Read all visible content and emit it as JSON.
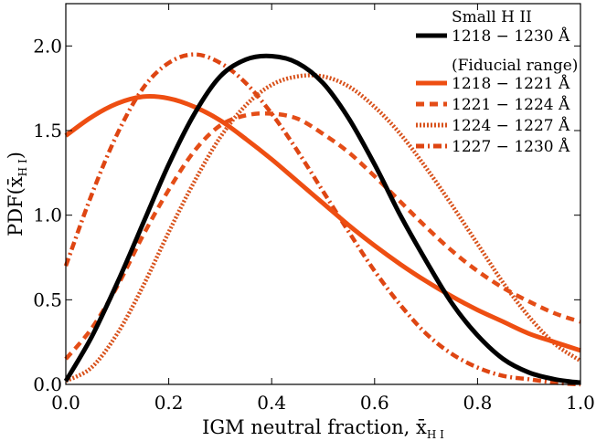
{
  "chart_data": {
    "type": "line",
    "xlabel": "IGM neutral fraction, x̄",
    "xlabel_sub": "H I",
    "ylabel": "PDF(x̄",
    "ylabel_sub": "H I",
    "ylabel_close": ")",
    "xlim": [
      0.0,
      1.0
    ],
    "ylim": [
      0.0,
      2.25
    ],
    "x_ticks": [
      0.0,
      0.2,
      0.4,
      0.6,
      0.8,
      1.0
    ],
    "x_tick_labels": [
      "0.0",
      "0.2",
      "0.4",
      "0.6",
      "0.8",
      "1.0"
    ],
    "y_ticks": [
      0.0,
      0.5,
      1.0,
      1.5,
      2.0
    ],
    "y_tick_labels": [
      "0.0",
      "0.5",
      "1.0",
      "1.5",
      "2.0"
    ],
    "grid": false,
    "legend_position": "top-right",
    "legend_title": "Small H II",
    "legend_note": "(Fiducial range)",
    "series": [
      {
        "name": "1218 − 1230 Å",
        "color": "#000000",
        "style": "solid",
        "x": [
          0.0,
          0.05,
          0.1,
          0.15,
          0.2,
          0.25,
          0.3,
          0.35,
          0.4,
          0.45,
          0.5,
          0.55,
          0.6,
          0.65,
          0.7,
          0.75,
          0.8,
          0.85,
          0.9,
          0.95,
          1.0
        ],
        "y": [
          0.02,
          0.28,
          0.6,
          0.95,
          1.3,
          1.6,
          1.82,
          1.92,
          1.94,
          1.9,
          1.78,
          1.57,
          1.3,
          1.0,
          0.73,
          0.48,
          0.29,
          0.15,
          0.07,
          0.03,
          0.01
        ]
      },
      {
        "name": "1218 − 1221 Å",
        "color": "#ee4e12",
        "style": "solid",
        "x": [
          0.0,
          0.05,
          0.1,
          0.15,
          0.2,
          0.25,
          0.3,
          0.35,
          0.4,
          0.45,
          0.5,
          0.55,
          0.6,
          0.65,
          0.7,
          0.75,
          0.8,
          0.85,
          0.9,
          0.95,
          1.0
        ],
        "y": [
          1.47,
          1.58,
          1.66,
          1.7,
          1.69,
          1.64,
          1.56,
          1.45,
          1.33,
          1.2,
          1.07,
          0.94,
          0.82,
          0.71,
          0.61,
          0.52,
          0.44,
          0.37,
          0.3,
          0.25,
          0.2
        ]
      },
      {
        "name": "1221 − 1224 Å",
        "color": "#e44d17",
        "style": "dashed",
        "x": [
          0.0,
          0.05,
          0.1,
          0.15,
          0.2,
          0.25,
          0.3,
          0.35,
          0.4,
          0.45,
          0.5,
          0.55,
          0.6,
          0.65,
          0.7,
          0.75,
          0.8,
          0.85,
          0.9,
          0.95,
          1.0
        ],
        "y": [
          0.15,
          0.33,
          0.58,
          0.88,
          1.15,
          1.38,
          1.53,
          1.59,
          1.6,
          1.57,
          1.48,
          1.37,
          1.23,
          1.08,
          0.93,
          0.79,
          0.67,
          0.57,
          0.49,
          0.42,
          0.37
        ]
      },
      {
        "name": "1224 − 1227 Å",
        "color": "#d8521c",
        "style": "dotted",
        "x": [
          0.0,
          0.05,
          0.1,
          0.15,
          0.2,
          0.25,
          0.3,
          0.35,
          0.4,
          0.45,
          0.5,
          0.55,
          0.6,
          0.65,
          0.7,
          0.75,
          0.8,
          0.85,
          0.9,
          0.95,
          1.0
        ],
        "y": [
          0.02,
          0.1,
          0.3,
          0.58,
          0.9,
          1.2,
          1.46,
          1.65,
          1.77,
          1.82,
          1.82,
          1.76,
          1.64,
          1.48,
          1.28,
          1.06,
          0.83,
          0.6,
          0.4,
          0.24,
          0.14
        ]
      },
      {
        "name": "1227 − 1230 Å",
        "color": "#de4512",
        "style": "dashdot",
        "x": [
          0.0,
          0.05,
          0.1,
          0.15,
          0.2,
          0.25,
          0.3,
          0.35,
          0.4,
          0.45,
          0.5,
          0.55,
          0.6,
          0.65,
          0.7,
          0.75,
          0.8,
          0.85,
          0.9,
          0.95,
          1.0
        ],
        "y": [
          0.7,
          1.12,
          1.48,
          1.75,
          1.9,
          1.95,
          1.9,
          1.78,
          1.6,
          1.38,
          1.14,
          0.9,
          0.67,
          0.47,
          0.3,
          0.18,
          0.1,
          0.05,
          0.03,
          0.01,
          0.0
        ]
      }
    ]
  }
}
